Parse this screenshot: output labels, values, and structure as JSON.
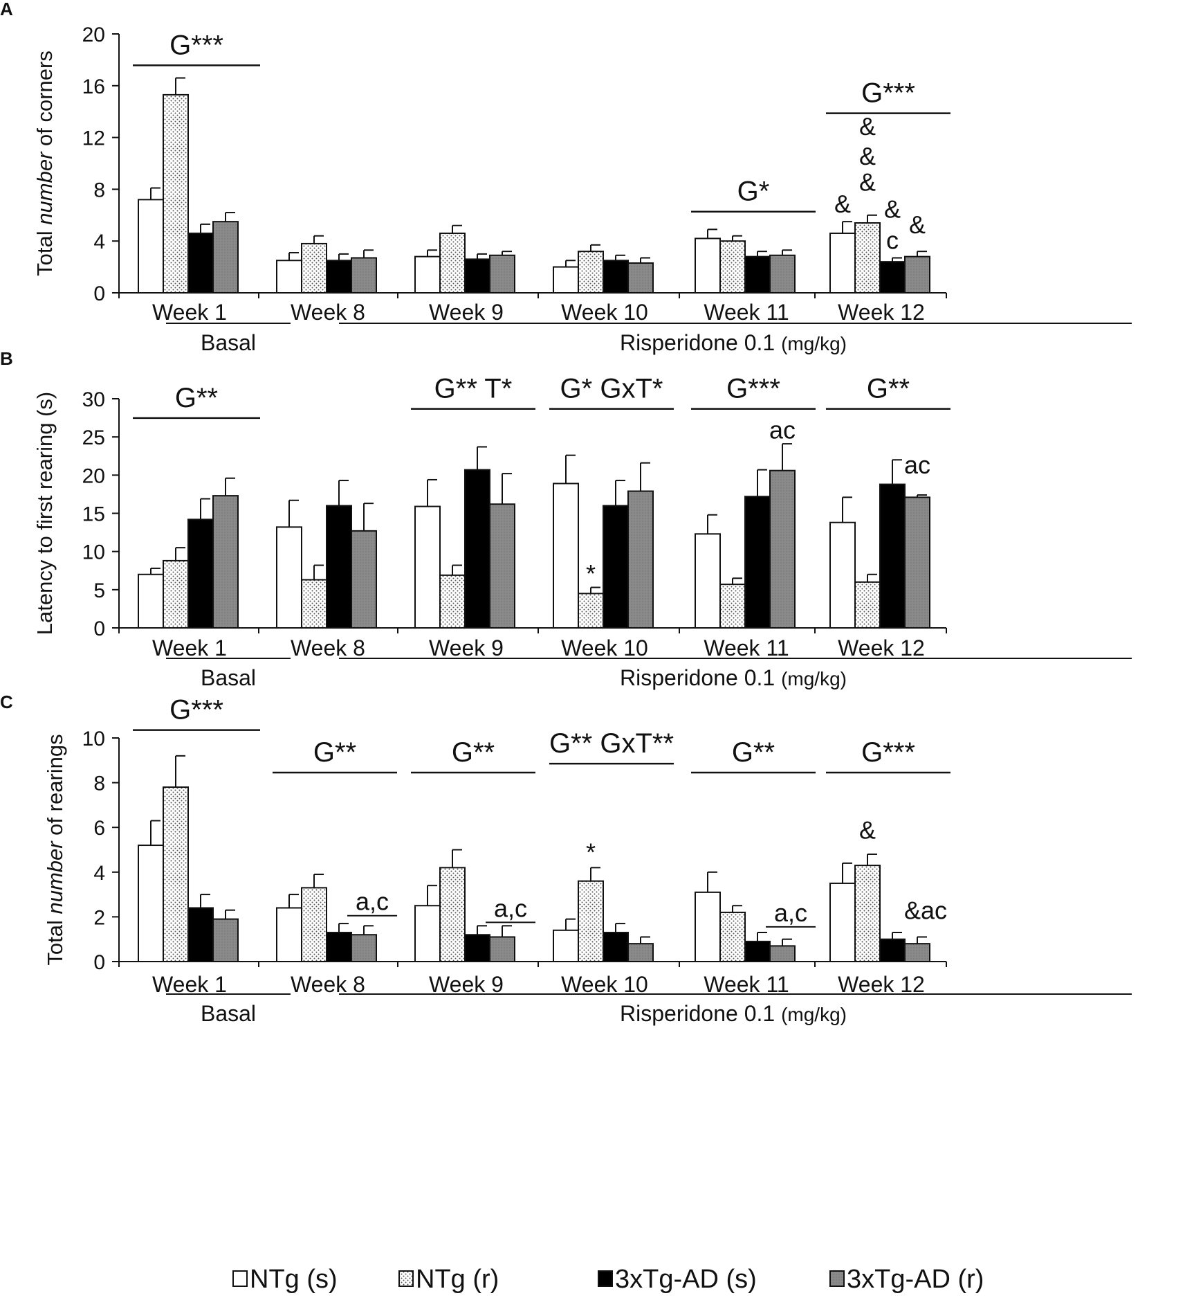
{
  "legend": [
    {
      "label": "NTg (s)",
      "style": "white"
    },
    {
      "label": "NTg (r)",
      "style": "dotted"
    },
    {
      "label": "3xTg-AD (s)",
      "style": "black"
    },
    {
      "label": "3xTg-AD (r)",
      "style": "gray"
    }
  ],
  "colors": {
    "white": "#ffffff",
    "black": "#000000",
    "gray": "#8a8a8a",
    "dotted_bg": "#ffffff",
    "dotted_dot": "#555555",
    "stroke": "#111111"
  },
  "chart_data": [
    {
      "type": "bar",
      "panel": "A",
      "ylabel_parts": [
        "Total ",
        "number",
        " of corners"
      ],
      "ylim": [
        0,
        20
      ],
      "yticks": [
        0,
        4,
        8,
        12,
        16,
        20
      ],
      "categories": [
        "Week 1",
        "Week 8",
        "Week 9",
        "Week 10",
        "Week 11",
        "Week 12"
      ],
      "groups": {
        "basal_label": "Basal",
        "treatment_label": "Risperidone 0.1",
        "treatment_unit": "(mg/kg)"
      },
      "series": [
        {
          "name": "NTg (s)",
          "values": [
            7.2,
            2.5,
            2.8,
            2.0,
            4.2,
            4.6
          ],
          "errors": [
            0.9,
            0.6,
            0.5,
            0.5,
            0.7,
            0.9
          ]
        },
        {
          "name": "NTg (r)",
          "values": [
            15.3,
            3.8,
            4.6,
            3.2,
            4.0,
            5.4
          ],
          "errors": [
            1.3,
            0.6,
            0.6,
            0.5,
            0.4,
            0.6
          ]
        },
        {
          "name": "3xTg-AD (s)",
          "values": [
            4.6,
            2.5,
            2.6,
            2.5,
            2.8,
            2.4
          ],
          "errors": [
            0.7,
            0.5,
            0.4,
            0.4,
            0.4,
            0.3
          ]
        },
        {
          "name": "3xTg-AD (r)",
          "values": [
            5.5,
            2.7,
            2.9,
            2.3,
            2.9,
            2.8
          ],
          "errors": [
            0.7,
            0.6,
            0.3,
            0.4,
            0.4,
            0.4
          ]
        }
      ],
      "annotations": [
        {
          "text": "G***",
          "week": 0,
          "value": 18.0
        },
        {
          "text": "G*",
          "week": 4,
          "value": 6.7
        },
        {
          "text": "G***",
          "week": 5,
          "value": 14.3
        },
        {
          "text": "&",
          "week": 5,
          "series": 0,
          "value": 6.2
        },
        {
          "text": "&",
          "week": 5,
          "series": 1,
          "value": 12.2
        },
        {
          "text": "&",
          "week": 5,
          "series": 1,
          "value": 9.9
        },
        {
          "text": "&",
          "week": 5,
          "series": 1,
          "value": 7.9
        },
        {
          "text": "&",
          "week": 5,
          "series": 2,
          "value": 5.8
        },
        {
          "text": "c",
          "week": 5,
          "series": 2,
          "value": 3.4
        },
        {
          "text": "&",
          "week": 5,
          "series": 3,
          "value": 4.6
        }
      ]
    },
    {
      "type": "bar",
      "panel": "B",
      "ylabel_parts": [
        "Latency to first rearing (s)"
      ],
      "ylim": [
        0,
        30
      ],
      "yticks": [
        0,
        5,
        10,
        15,
        20,
        25,
        30
      ],
      "categories": [
        "Week 1",
        "Week 8",
        "Week 9",
        "Week 10",
        "Week 11",
        "Week 12"
      ],
      "groups": {
        "basal_label": "Basal",
        "treatment_label": "Risperidone 0.1",
        "treatment_unit": "(mg/kg)"
      },
      "series": [
        {
          "name": "NTg (s)",
          "values": [
            7.0,
            13.2,
            15.9,
            18.9,
            12.3,
            13.8
          ],
          "errors": [
            0.8,
            3.5,
            3.5,
            3.7,
            2.5,
            3.3
          ]
        },
        {
          "name": "NTg (r)",
          "values": [
            8.8,
            6.3,
            6.9,
            4.5,
            5.7,
            6.0
          ],
          "errors": [
            1.7,
            1.9,
            1.3,
            0.8,
            0.8,
            1.0
          ]
        },
        {
          "name": "3xTg-AD (s)",
          "values": [
            14.2,
            16.0,
            20.7,
            16.0,
            17.2,
            18.8
          ],
          "errors": [
            2.7,
            3.3,
            3.0,
            3.3,
            3.5,
            3.2
          ]
        },
        {
          "name": "3xTg-AD (r)",
          "values": [
            17.3,
            12.7,
            16.2,
            17.9,
            20.6,
            17.1
          ],
          "errors": [
            2.3,
            3.6,
            4.0,
            3.7,
            3.5,
            0.3
          ]
        }
      ],
      "annotations": [
        {
          "text": "G**",
          "week": 0,
          "value": 28.2
        },
        {
          "text": "G**  T*",
          "week": 2,
          "value": 29.4
        },
        {
          "text": "G*  GxT*",
          "week": 3,
          "value": 29.4
        },
        {
          "text": "G***",
          "week": 4,
          "value": 29.4
        },
        {
          "text": "G**",
          "week": 5,
          "value": 29.4
        },
        {
          "text": "ac",
          "week": 4,
          "series": 3,
          "value": 24.8
        },
        {
          "text": "ac",
          "week": 5,
          "series": 3,
          "value": 20.2
        },
        {
          "text": "*",
          "week": 3,
          "series": 1,
          "value": 6.0
        }
      ]
    },
    {
      "type": "bar",
      "panel": "C",
      "ylabel_parts": [
        "Total ",
        "number",
        " of rearings"
      ],
      "ylim": [
        0,
        10
      ],
      "yticks": [
        0,
        2,
        4,
        6,
        8,
        10
      ],
      "categories": [
        "Week 1",
        "Week 8",
        "Week 9",
        "Week 10",
        "Week 11",
        "Week 12"
      ],
      "groups": {
        "basal_label": "Basal",
        "treatment_label": "Risperidone 0.1",
        "treatment_unit": "(mg/kg)"
      },
      "series": [
        {
          "name": "NTg (s)",
          "values": [
            5.2,
            2.4,
            2.5,
            1.4,
            3.1,
            3.5
          ],
          "errors": [
            1.1,
            0.6,
            0.9,
            0.5,
            0.9,
            0.9
          ]
        },
        {
          "name": "NTg (r)",
          "values": [
            7.8,
            3.3,
            4.2,
            3.6,
            2.2,
            4.3
          ],
          "errors": [
            1.4,
            0.6,
            0.8,
            0.6,
            0.3,
            0.5
          ]
        },
        {
          "name": "3xTg-AD (s)",
          "values": [
            2.4,
            1.3,
            1.2,
            1.3,
            0.9,
            1.0
          ],
          "errors": [
            0.6,
            0.4,
            0.4,
            0.4,
            0.4,
            0.3
          ]
        },
        {
          "name": "3xTg-AD (r)",
          "values": [
            1.9,
            1.2,
            1.1,
            0.8,
            0.7,
            0.8
          ],
          "errors": [
            0.4,
            0.4,
            0.5,
            0.3,
            0.3,
            0.3
          ]
        }
      ],
      "annotations": [
        {
          "text": "G***",
          "week": 0,
          "value": 10.6
        },
        {
          "text": "G**",
          "week": 1,
          "value": 8.7
        },
        {
          "text": "G**",
          "week": 2,
          "value": 8.7
        },
        {
          "text": "G** GxT**",
          "week": 3,
          "value": 9.1
        },
        {
          "text": "G**",
          "week": 4,
          "value": 8.7
        },
        {
          "text": "G***",
          "week": 5,
          "value": 8.7
        },
        {
          "text": "a,c",
          "week": 1,
          "series": 3,
          "value": 2.3,
          "underline": true
        },
        {
          "text": "a,c",
          "week": 2,
          "series": 3,
          "value": 2.0,
          "underline": true
        },
        {
          "text": "a,c",
          "week": 4,
          "series": 3,
          "value": 1.8,
          "underline": true
        },
        {
          "text": "*",
          "week": 3,
          "series": 1,
          "value": 4.5
        },
        {
          "text": "&",
          "week": 5,
          "series": 1,
          "value": 5.5
        },
        {
          "text": "&ac",
          "week": 5,
          "series": 3,
          "value": 1.9
        }
      ]
    }
  ]
}
